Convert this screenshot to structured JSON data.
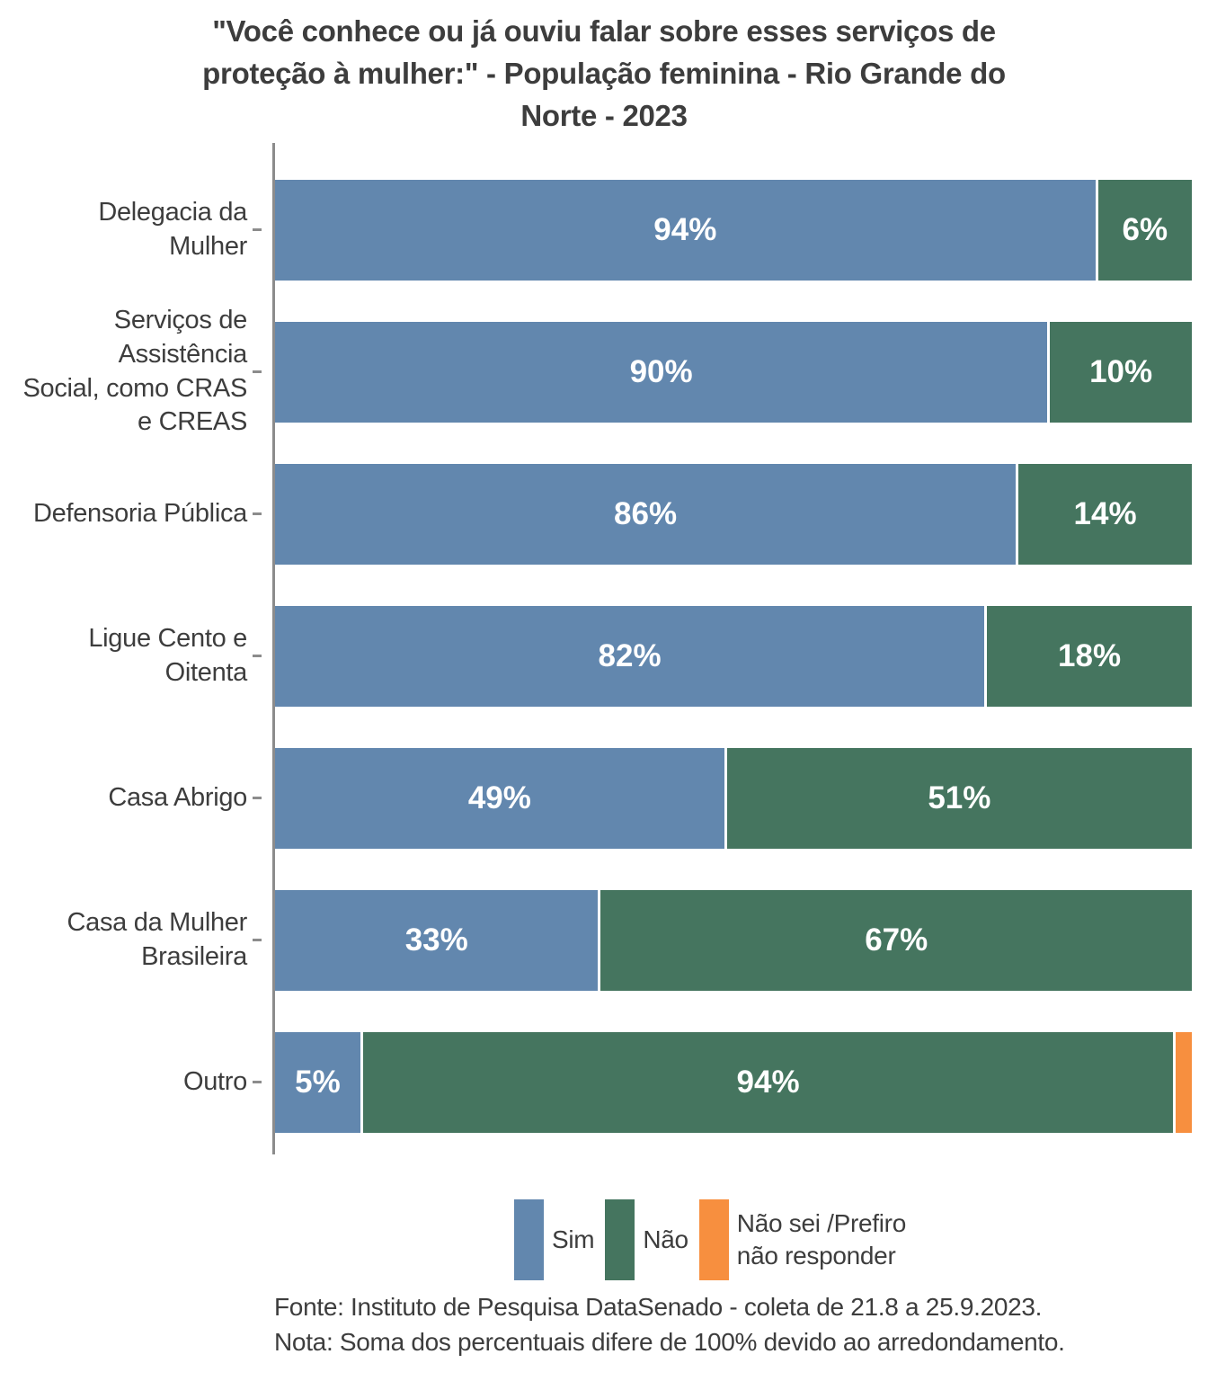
{
  "title": "\"Você conhece ou já ouviu falar sobre esses serviços de proteção à mulher:\" - População feminina - Rio Grande do Norte - 2023",
  "title_lines": [
    "\"Você conhece ou já ouviu falar sobre esses serviços de",
    "proteção à mulher:\" - População feminina - Rio Grande do",
    "Norte - 2023"
  ],
  "chart_data": {
    "type": "bar",
    "orientation": "horizontal",
    "stacked": true,
    "unit": "%",
    "grid": false,
    "legend_position": "bottom",
    "label_min_pct": 5,
    "xlim": [
      0,
      100
    ],
    "categories": [
      "Delegacia da Mulher",
      "Serviços de Assistência Social, como CRAS e CREAS",
      "Defensoria Pública",
      "Ligue Cento e Oitenta",
      "Casa Abrigo",
      "Casa da Mulher Brasileira",
      "Outro"
    ],
    "category_label_lines": [
      [
        "Delegacia da",
        "Mulher"
      ],
      [
        "Serviços de",
        "Assistência",
        "Social, como CRAS",
        "e CREAS"
      ],
      [
        "Defensoria Pública"
      ],
      [
        "Ligue Cento e",
        "Oitenta"
      ],
      [
        "Casa Abrigo"
      ],
      [
        "Casa da Mulher",
        "Brasileira"
      ],
      [
        "Outro"
      ]
    ],
    "series": [
      {
        "name": "Sim",
        "color": "#6287ae",
        "values": [
          94,
          90,
          86,
          82,
          49,
          33,
          5
        ]
      },
      {
        "name": "Não",
        "color": "#45755f",
        "values": [
          6,
          10,
          14,
          18,
          51,
          67,
          94
        ]
      },
      {
        "name": "Não sei /Prefiro não responder",
        "color": "#f78f3f",
        "values": [
          0,
          0,
          0,
          0,
          0,
          0,
          2
        ]
      }
    ]
  },
  "footer": {
    "fonte": "Fonte: Instituto de Pesquisa DataSenado - coleta de 21.8 a 25.9.2023.",
    "nota": "Nota: Soma dos percentuais difere de 100% devido ao arredondamento."
  },
  "colors": {
    "axis": "#8c8c8c",
    "text": "#3d3d3d",
    "value_label": "#ffffff",
    "background": "#ffffff"
  }
}
